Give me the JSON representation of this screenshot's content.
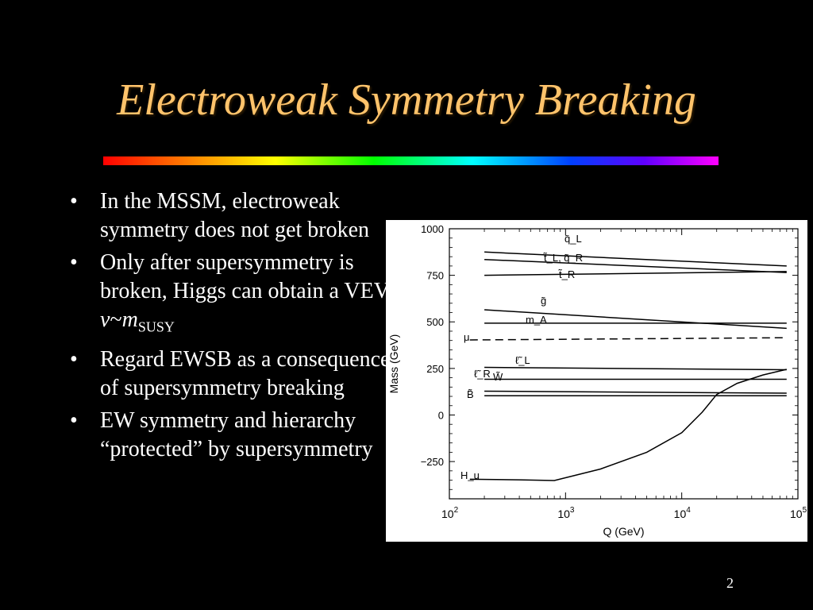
{
  "slide": {
    "title": "Electroweak Symmetry Breaking",
    "page_number": "2",
    "bullet_char": "•",
    "bullets": [
      {
        "text": "In the MSSM, electroweak symmetry does not get broken"
      },
      {
        "text": "Only after supersymmetry is broken, Higgs can obtain a VEV ",
        "math_v": "v",
        "math_tilde": "~",
        "math_m": "m",
        "math_sub": "SUSY"
      },
      {
        "text": "Regard EWSB as a consequence of supersymmetry breaking"
      },
      {
        "text": "EW symmetry and hierarchy “protected” by supersymmetry"
      }
    ]
  },
  "chart_data": {
    "type": "line",
    "title": "",
    "xlabel": "Q (GeV)",
    "ylabel": "Mass (GeV)",
    "x_scale": "log",
    "xlim": [
      100,
      100000
    ],
    "ylim": [
      -450,
      1000
    ],
    "x_ticks": [
      {
        "value": 100,
        "base": "10",
        "exp": "2"
      },
      {
        "value": 1000,
        "base": "10",
        "exp": "3"
      },
      {
        "value": 10000,
        "base": "10",
        "exp": "4"
      },
      {
        "value": 100000,
        "base": "10",
        "exp": "5"
      }
    ],
    "y_ticks": [
      {
        "value": 1000,
        "label": "1000"
      },
      {
        "value": 750,
        "label": "750"
      },
      {
        "value": 500,
        "label": "500"
      },
      {
        "value": 250,
        "label": "250"
      },
      {
        "value": 0,
        "label": "0"
      },
      {
        "value": -250,
        "label": "−250"
      }
    ],
    "grid": false,
    "series": [
      {
        "label": "q̃_L",
        "points": [
          [
            200,
            875
          ],
          [
            80000,
            800
          ]
        ]
      },
      {
        "label": "t̃_L, q̃_R",
        "points": [
          [
            200,
            835
          ],
          [
            80000,
            765
          ]
        ]
      },
      {
        "label": "t̃_R",
        "points": [
          [
            200,
            750
          ],
          [
            80000,
            770
          ]
        ]
      },
      {
        "label": "g̃",
        "points": [
          [
            200,
            565
          ],
          [
            80000,
            465
          ]
        ]
      },
      {
        "label": "m_A",
        "points": [
          [
            200,
            493
          ],
          [
            80000,
            493
          ]
        ]
      },
      {
        "label": "μ",
        "dashed": true,
        "points": [
          [
            150,
            403
          ],
          [
            80000,
            415
          ]
        ]
      },
      {
        "label": "ℓ̃_L",
        "points": [
          [
            200,
            256
          ],
          [
            80000,
            243
          ]
        ]
      },
      {
        "label": "W̃",
        "points": [
          [
            200,
            192
          ],
          [
            80000,
            192
          ]
        ]
      },
      {
        "label": "ℓ̃_R",
        "points": [
          [
            200,
            128
          ],
          [
            80000,
            117
          ]
        ]
      },
      {
        "label": "B̃",
        "points": [
          [
            200,
            103
          ],
          [
            80000,
            103
          ]
        ]
      },
      {
        "label": "H_u",
        "points": [
          [
            150,
            -345
          ],
          [
            400,
            -348
          ],
          [
            800,
            -352
          ],
          [
            2000,
            -290
          ],
          [
            5000,
            -200
          ],
          [
            10000,
            -95
          ],
          [
            15000,
            15
          ],
          [
            20000,
            110
          ],
          [
            30000,
            170
          ],
          [
            50000,
            215
          ],
          [
            80000,
            245
          ]
        ]
      }
    ]
  }
}
